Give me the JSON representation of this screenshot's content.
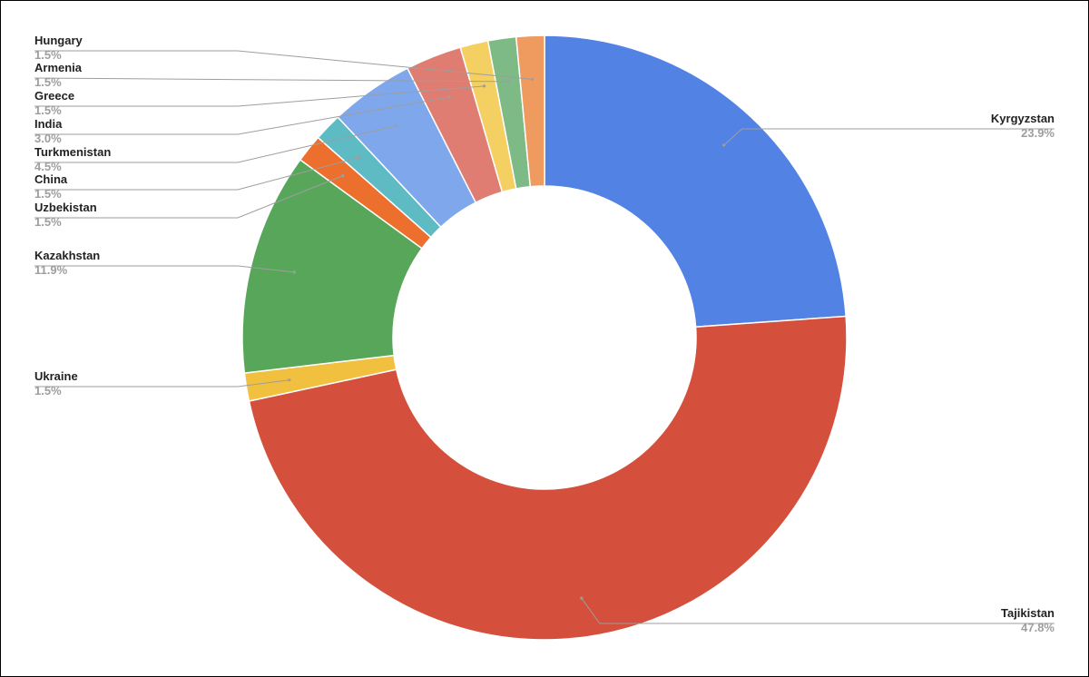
{
  "chart_data": {
    "type": "pie",
    "style": "donut",
    "title": "",
    "start": "top",
    "direction": "clockwise",
    "slices": [
      {
        "label": "Kyrgyzstan",
        "pct_label": "23.9%",
        "value": 23.9,
        "color": "#5182e4"
      },
      {
        "label": "Tajikistan",
        "pct_label": "47.8%",
        "value": 47.8,
        "color": "#d44f3c"
      },
      {
        "label": "Ukraine",
        "pct_label": "1.5%",
        "value": 1.5,
        "color": "#f1c03f"
      },
      {
        "label": "Kazakhstan",
        "pct_label": "11.9%",
        "value": 11.9,
        "color": "#57a65a"
      },
      {
        "label": "Uzbekistan",
        "pct_label": "1.5%",
        "value": 1.5,
        "color": "#ec6f2e"
      },
      {
        "label": "China",
        "pct_label": "1.5%",
        "value": 1.5,
        "color": "#5ebac3"
      },
      {
        "label": "Turkmenistan",
        "pct_label": "4.5%",
        "value": 4.5,
        "color": "#7fa7ec"
      },
      {
        "label": "India",
        "pct_label": "3.0%",
        "value": 3.0,
        "color": "#e07d72"
      },
      {
        "label": "Greece",
        "pct_label": "1.5%",
        "value": 1.5,
        "color": "#f4d063"
      },
      {
        "label": "Armenia",
        "pct_label": "1.5%",
        "value": 1.5,
        "color": "#7eba86"
      },
      {
        "label": "Hungary",
        "pct_label": "1.5%",
        "value": 1.5,
        "color": "#ef9b5f"
      }
    ]
  }
}
